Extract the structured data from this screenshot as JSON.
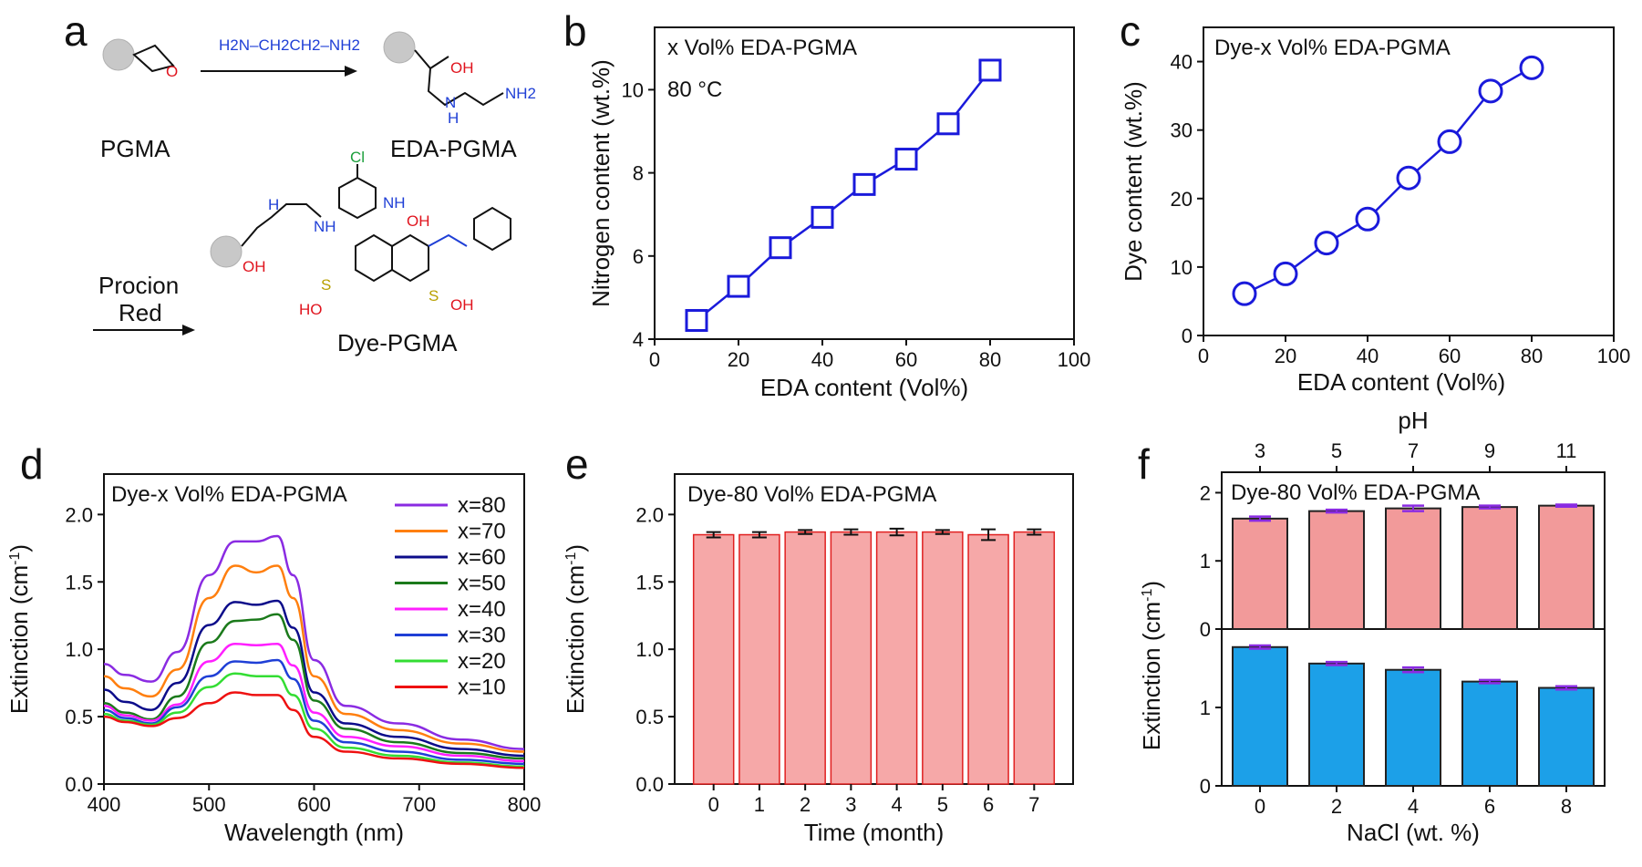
{
  "panel_a": {
    "letter": "a",
    "reagent1": "H2N–CH2CH2–NH2",
    "label_pgma": "PGMA",
    "label_eda_pgma": "EDA-PGMA",
    "label_dye_pgma": "Dye-PGMA",
    "reagent2_line1": "Procion",
    "reagent2_line2": "Red",
    "atom_o": "O",
    "atom_oh": "OH",
    "atom_nh2": "NH2",
    "atom_h": "H",
    "atom_n": "N",
    "atom_cl": "Cl",
    "atom_nh": "NH",
    "atom_s": "S",
    "atom_ho": "HO",
    "colors": {
      "amine": "#1f3fd6",
      "oxygen": "#e0141e",
      "chlorine": "#1a9e3a",
      "sulfur": "#b8a000",
      "bead": "#c8c8c8"
    }
  },
  "chart_data": [
    {
      "id": "b",
      "letter": "b",
      "type": "line",
      "annotation": [
        "x Vol% EDA-PGMA",
        "80 °C"
      ],
      "xlabel": "EDA content (Vol%)",
      "ylabel": "Nitrogen content (wt.%)",
      "xlim": [
        0,
        100
      ],
      "ylim": [
        4,
        11.5
      ],
      "xticks": [
        0,
        20,
        40,
        60,
        80,
        100
      ],
      "yticks": [
        4,
        6,
        8,
        10
      ],
      "marker": "square",
      "color": "#1a1adb",
      "x": [
        10,
        20,
        30,
        40,
        50,
        60,
        70,
        80
      ],
      "y": [
        4.45,
        5.27,
        6.2,
        6.93,
        7.72,
        8.33,
        9.18,
        10.47
      ]
    },
    {
      "id": "c",
      "letter": "c",
      "type": "line",
      "annotation": [
        "Dye-x Vol% EDA-PGMA"
      ],
      "xlabel": "EDA content (Vol%)",
      "ylabel": "Dye content (wt.%)",
      "xlim": [
        0,
        100
      ],
      "ylim": [
        0,
        45
      ],
      "xticks": [
        0,
        20,
        40,
        60,
        80,
        100
      ],
      "yticks": [
        0,
        10,
        20,
        30,
        40
      ],
      "marker": "circle",
      "color": "#1a1adb",
      "x": [
        10,
        20,
        30,
        40,
        50,
        60,
        70,
        80
      ],
      "y": [
        6.1,
        9.0,
        13.5,
        17.0,
        23.0,
        28.3,
        35.7,
        39.1
      ]
    },
    {
      "id": "d",
      "letter": "d",
      "type": "line",
      "annotation": [
        "Dye-x Vol% EDA-PGMA"
      ],
      "xlabel": "Wavelength (nm)",
      "ylabel": "Extinction (cm-1)",
      "xlim": [
        400,
        800
      ],
      "ylim": [
        0,
        2.3
      ],
      "xticks": [
        400,
        500,
        600,
        700,
        800
      ],
      "yticks": [
        0.0,
        0.5,
        1.0,
        1.5,
        2.0
      ],
      "legend": "right",
      "series": [
        {
          "name": "x=80",
          "color": "#8a2be2",
          "x": [
            400,
            420,
            445,
            470,
            500,
            525,
            545,
            565,
            580,
            600,
            630,
            680,
            740,
            800
          ],
          "y": [
            0.89,
            0.81,
            0.76,
            0.98,
            1.55,
            1.8,
            1.8,
            1.84,
            1.55,
            0.92,
            0.58,
            0.45,
            0.33,
            0.26
          ]
        },
        {
          "name": "x=70",
          "color": "#ff7f0e",
          "x": [
            400,
            420,
            445,
            470,
            500,
            525,
            545,
            565,
            580,
            600,
            630,
            680,
            740,
            800
          ],
          "y": [
            0.8,
            0.71,
            0.65,
            0.85,
            1.38,
            1.62,
            1.57,
            1.62,
            1.38,
            0.8,
            0.52,
            0.4,
            0.3,
            0.24
          ]
        },
        {
          "name": "x=60",
          "color": "#0c0c8a",
          "x": [
            400,
            420,
            445,
            470,
            500,
            525,
            545,
            565,
            580,
            600,
            630,
            680,
            740,
            800
          ],
          "y": [
            0.7,
            0.61,
            0.55,
            0.75,
            1.18,
            1.35,
            1.33,
            1.36,
            1.16,
            0.68,
            0.45,
            0.35,
            0.26,
            0.21
          ]
        },
        {
          "name": "x=50",
          "color": "#1b7a1b",
          "x": [
            400,
            420,
            445,
            470,
            500,
            525,
            545,
            565,
            580,
            600,
            630,
            680,
            740,
            800
          ],
          "y": [
            0.6,
            0.53,
            0.48,
            0.65,
            1.05,
            1.21,
            1.22,
            1.26,
            1.07,
            0.62,
            0.41,
            0.31,
            0.23,
            0.19
          ]
        },
        {
          "name": "x=40",
          "color": "#ff1fff",
          "x": [
            400,
            420,
            445,
            470,
            500,
            525,
            545,
            565,
            580,
            600,
            630,
            680,
            740,
            800
          ],
          "y": [
            0.58,
            0.51,
            0.47,
            0.59,
            0.91,
            1.04,
            1.03,
            1.04,
            0.88,
            0.53,
            0.35,
            0.28,
            0.21,
            0.17
          ]
        },
        {
          "name": "x=30",
          "color": "#1f3fd6",
          "x": [
            400,
            420,
            445,
            470,
            500,
            525,
            545,
            565,
            580,
            600,
            630,
            680,
            740,
            800
          ],
          "y": [
            0.55,
            0.49,
            0.45,
            0.57,
            0.8,
            0.91,
            0.9,
            0.92,
            0.78,
            0.47,
            0.31,
            0.24,
            0.18,
            0.15
          ]
        },
        {
          "name": "x=20",
          "color": "#33dd33",
          "x": [
            400,
            420,
            445,
            470,
            500,
            525,
            545,
            565,
            580,
            600,
            630,
            680,
            740,
            800
          ],
          "y": [
            0.52,
            0.47,
            0.44,
            0.53,
            0.72,
            0.82,
            0.8,
            0.8,
            0.66,
            0.41,
            0.27,
            0.21,
            0.16,
            0.13
          ]
        },
        {
          "name": "x=10",
          "color": "#ee1111",
          "x": [
            400,
            420,
            445,
            470,
            500,
            525,
            545,
            565,
            580,
            600,
            630,
            680,
            740,
            800
          ],
          "y": [
            0.5,
            0.46,
            0.43,
            0.49,
            0.6,
            0.68,
            0.66,
            0.66,
            0.55,
            0.35,
            0.24,
            0.19,
            0.15,
            0.12
          ]
        }
      ]
    },
    {
      "id": "e",
      "letter": "e",
      "type": "bar",
      "annotation": [
        "Dye-80 Vol% EDA-PGMA"
      ],
      "xlabel": "Time (month)",
      "ylabel": "Extinction (cm-1)",
      "ylim": [
        0,
        2.3
      ],
      "yticks": [
        0.0,
        0.5,
        1.0,
        1.5,
        2.0
      ],
      "categories": [
        "0",
        "1",
        "2",
        "3",
        "4",
        "5",
        "6",
        "7"
      ],
      "values": [
        1.85,
        1.85,
        1.87,
        1.87,
        1.87,
        1.87,
        1.85,
        1.87
      ],
      "errors": [
        0.02,
        0.02,
        0.015,
        0.02,
        0.025,
        0.015,
        0.04,
        0.02
      ],
      "fill": "#f6a8a8",
      "edge": "#e02020"
    },
    {
      "id": "f_top",
      "letter": "f",
      "type": "bar",
      "annotation": [
        "Dye-80 Vol% EDA-PGMA"
      ],
      "xlabel": "pH",
      "ylabel": "Extinction (cm-1)",
      "ylim": [
        0,
        2.3
      ],
      "yticks": [
        0,
        1,
        2
      ],
      "categories": [
        "3",
        "5",
        "7",
        "9",
        "11"
      ],
      "values": [
        1.62,
        1.73,
        1.77,
        1.79,
        1.81
      ],
      "errors": [
        0.03,
        0.02,
        0.04,
        0.02,
        0.015
      ],
      "fill": "#f29a9a",
      "edge": "#222222",
      "errcolor": "#8a2be2"
    },
    {
      "id": "f_bottom",
      "type": "bar",
      "xlabel": "NaCl (wt. %)",
      "ylim": [
        0,
        2.0
      ],
      "yticks": [
        0,
        1
      ],
      "categories": [
        "0",
        "2",
        "4",
        "6",
        "8"
      ],
      "values": [
        1.77,
        1.56,
        1.48,
        1.33,
        1.25
      ],
      "errors": [
        0.02,
        0.02,
        0.03,
        0.02,
        0.02
      ],
      "fill": "#1ca0e8",
      "edge": "#222222",
      "errcolor": "#8a2be2"
    }
  ]
}
